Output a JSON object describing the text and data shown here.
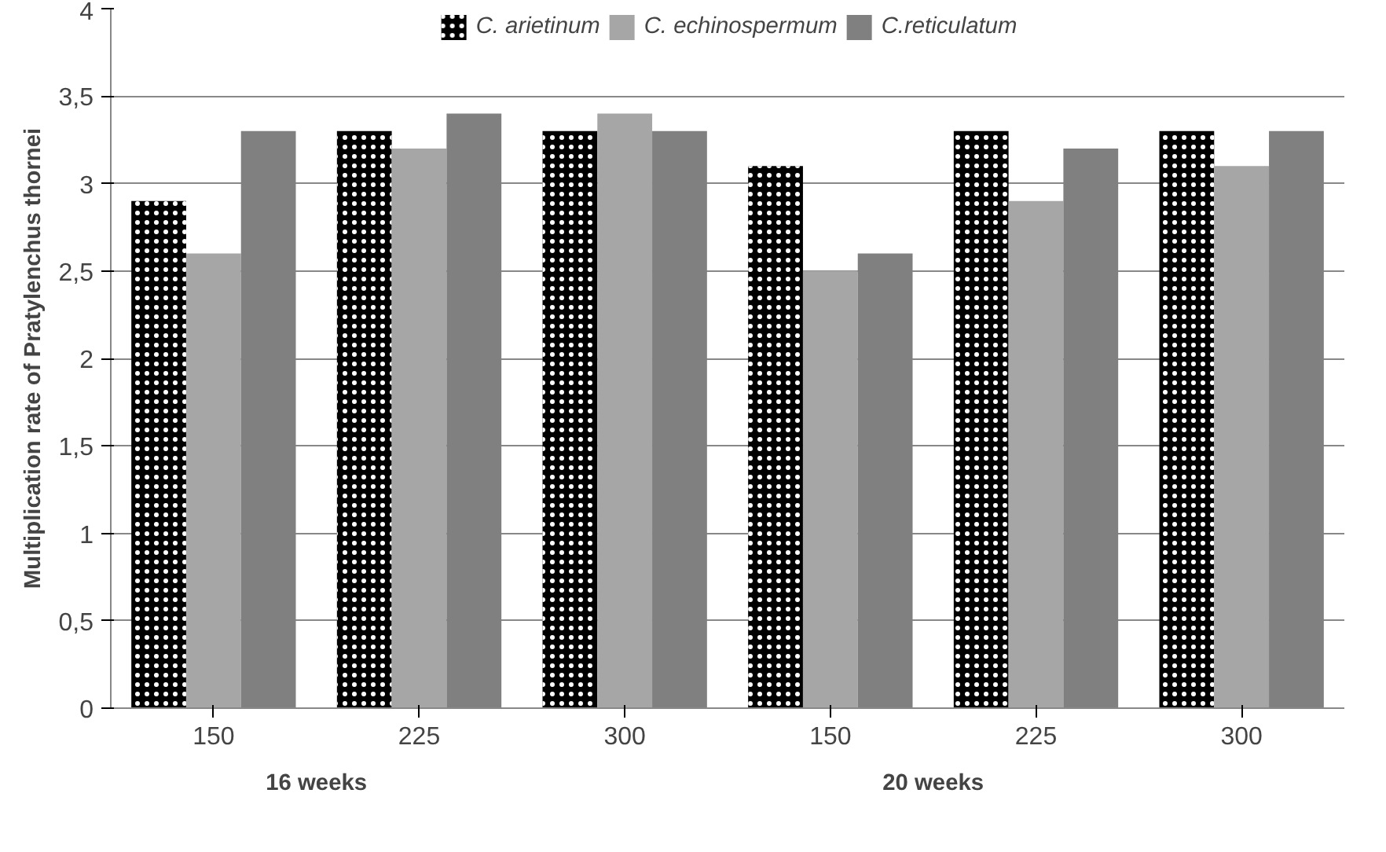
{
  "chart_data": {
    "type": "bar",
    "ylabel": "Multiplication rate of Pratylenchus thornei",
    "categories": [
      "150",
      "225",
      "300",
      "150",
      "225",
      "300"
    ],
    "series": [
      {
        "name": "C. arietinum",
        "color": "#000000",
        "values": [
          2.9,
          3.3,
          3.3,
          3.1,
          3.3,
          3.3
        ]
      },
      {
        "name": "C. echinospermum",
        "color": "#a6a6a6",
        "values": [
          2.6,
          3.2,
          3.4,
          2.5,
          2.9,
          3.1
        ]
      },
      {
        "name": "C.reticulatum",
        "color": "#808080",
        "values": [
          3.3,
          3.4,
          3.3,
          2.6,
          3.2,
          3.3
        ]
      }
    ],
    "ylim": [
      0,
      4
    ],
    "yticks": [
      0,
      {
        "value": 0.5,
        "label": "0,5"
      },
      1,
      {
        "value": 1.5,
        "label": "1,5"
      },
      2,
      {
        "value": 2.5,
        "label": "2,5"
      },
      3,
      {
        "value": 3.5,
        "label": "3,5"
      },
      4
    ],
    "grid": "y",
    "legend": "top",
    "annotations": [
      "16 weeks",
      "20 weeks"
    ]
  }
}
